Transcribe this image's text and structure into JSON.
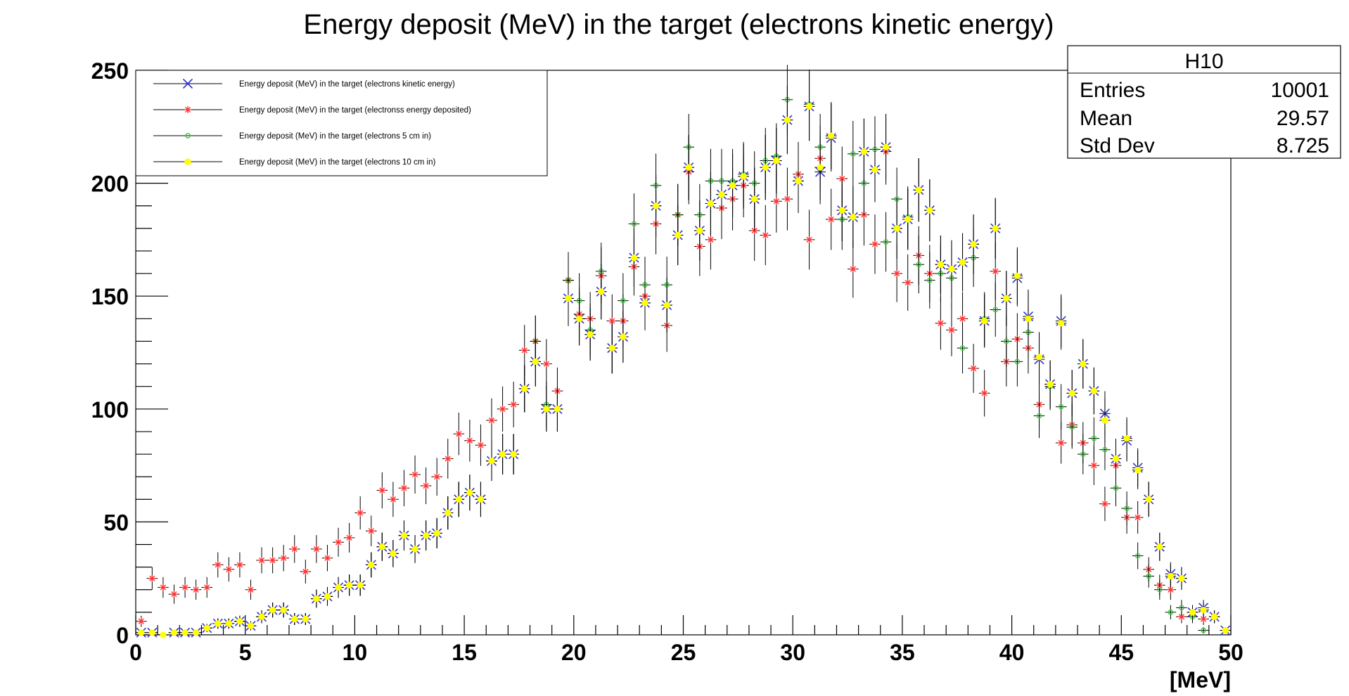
{
  "chart_data": {
    "type": "scatter",
    "title": "Energy deposit (MeV) in the target (electrons kinetic energy)",
    "xlabel": "[MeV]",
    "ylabel": "",
    "xlim": [
      0,
      50
    ],
    "ylim": [
      0,
      250
    ],
    "bin_width": 0.5,
    "x_ticks": [
      0,
      5,
      10,
      15,
      20,
      25,
      30,
      35,
      40,
      45,
      50
    ],
    "y_ticks": [
      0,
      50,
      100,
      150,
      200,
      250
    ],
    "grid": false,
    "legend_position": "top-left",
    "x": [
      0.25,
      0.75,
      1.25,
      1.75,
      2.25,
      2.75,
      3.25,
      3.75,
      4.25,
      4.75,
      5.25,
      5.75,
      6.25,
      6.75,
      7.25,
      7.75,
      8.25,
      8.75,
      9.25,
      9.75,
      10.25,
      10.75,
      11.25,
      11.75,
      12.25,
      12.75,
      13.25,
      13.75,
      14.25,
      14.75,
      15.25,
      15.75,
      16.25,
      16.75,
      17.25,
      17.75,
      18.25,
      18.75,
      19.25,
      19.75,
      20.25,
      20.75,
      21.25,
      21.75,
      22.25,
      22.75,
      23.25,
      23.75,
      24.25,
      24.75,
      25.25,
      25.75,
      26.25,
      26.75,
      27.25,
      27.75,
      28.25,
      28.75,
      29.25,
      29.75,
      30.25,
      30.75,
      31.25,
      31.75,
      32.25,
      32.75,
      33.25,
      33.75,
      34.25,
      34.75,
      35.25,
      35.75,
      36.25,
      36.75,
      37.25,
      37.75,
      38.25,
      38.75,
      39.25,
      39.75,
      40.25,
      40.75,
      41.25,
      41.75,
      42.25,
      42.75,
      43.25,
      43.75,
      44.25,
      44.75,
      45.25,
      45.75,
      46.25,
      46.75,
      47.25,
      47.75,
      48.25,
      48.75,
      49.25,
      49.75
    ],
    "series": [
      {
        "name": "Energy deposit (MeV) in the target (electrons kinetic energy)",
        "color": "#3333cc",
        "marker": "cross-x",
        "values": [
          1,
          1,
          0,
          1,
          1,
          1,
          3,
          5,
          5,
          6,
          4,
          8,
          11,
          11,
          7,
          7,
          16,
          17,
          21,
          22,
          22,
          31,
          39,
          36,
          44,
          38,
          44,
          45,
          54,
          60,
          63,
          60,
          77,
          80,
          80,
          109,
          121,
          100,
          100,
          149,
          140,
          133,
          152,
          127,
          132,
          167,
          147,
          190,
          146,
          177,
          207,
          179,
          191,
          195,
          199,
          203,
          193,
          207,
          210,
          228,
          201,
          234,
          205,
          220,
          188,
          185,
          214,
          206,
          216,
          180,
          184,
          197,
          188,
          164,
          162,
          165,
          173,
          139,
          180,
          149,
          158,
          141,
          122,
          111,
          139,
          107,
          120,
          108,
          98,
          78,
          86,
          74,
          60,
          39,
          27,
          25,
          10,
          12,
          8,
          2
        ]
      },
      {
        "name": "Energy deposit (MeV) in the target (electronss energy deposited)",
        "color": "#ff3333",
        "marker": "star",
        "values": [
          6,
          25,
          21,
          18,
          21,
          20,
          21,
          31,
          29,
          31,
          20,
          33,
          33,
          34,
          38,
          28,
          38,
          34,
          41,
          43,
          54,
          46,
          64,
          60,
          65,
          71,
          66,
          70,
          78,
          89,
          86,
          84,
          95,
          100,
          102,
          126,
          130,
          120,
          108,
          157,
          142,
          140,
          159,
          139,
          139,
          163,
          150,
          182,
          137,
          186,
          205,
          172,
          175,
          189,
          193,
          199,
          179,
          177,
          192,
          193,
          204,
          175,
          211,
          184,
          202,
          162,
          186,
          173,
          214,
          160,
          156,
          168,
          160,
          138,
          135,
          140,
          118,
          107,
          161,
          121,
          131,
          127,
          102,
          111,
          85,
          93,
          85,
          75,
          58,
          75,
          52,
          52,
          29,
          22,
          20,
          8,
          10,
          7,
          0,
          0
        ]
      },
      {
        "name": "Energy deposit (MeV) in the target (electrons 5 cm in)",
        "color": "#33cc33",
        "marker": "open-circle",
        "values": [
          0,
          0,
          0,
          0,
          0,
          0,
          3,
          5,
          5,
          6,
          4,
          8,
          11,
          11,
          7,
          7,
          16,
          17,
          21,
          22,
          22,
          31,
          39,
          36,
          44,
          38,
          44,
          45,
          54,
          60,
          63,
          60,
          77,
          80,
          80,
          109,
          130,
          102,
          100,
          157,
          148,
          135,
          161,
          127,
          148,
          182,
          155,
          199,
          155,
          186,
          216,
          186,
          201,
          201,
          201,
          204,
          200,
          210,
          212,
          237,
          201,
          235,
          216,
          221,
          184,
          213,
          200,
          215,
          174,
          193,
          185,
          164,
          157,
          160,
          158,
          127,
          167,
          140,
          144,
          130,
          121,
          134,
          97,
          110,
          101,
          92,
          80,
          87,
          82,
          65,
          56,
          35,
          26,
          20,
          10,
          12,
          8,
          2,
          0,
          0
        ]
      },
      {
        "name": "Energy deposit (MeV) in the target (electrons 10 cm in)",
        "color": "#ffff00",
        "marker": "filled-circle",
        "values": [
          1,
          1,
          0,
          1,
          1,
          1,
          3,
          5,
          5,
          6,
          4,
          8,
          11,
          11,
          7,
          7,
          16,
          17,
          21,
          22,
          22,
          31,
          39,
          36,
          44,
          38,
          44,
          45,
          54,
          60,
          63,
          60,
          77,
          80,
          80,
          109,
          121,
          100,
          100,
          149,
          140,
          133,
          152,
          127,
          132,
          167,
          147,
          190,
          146,
          177,
          207,
          179,
          191,
          195,
          199,
          203,
          193,
          207,
          210,
          228,
          201,
          234,
          207,
          221,
          188,
          185,
          214,
          206,
          216,
          180,
          184,
          197,
          188,
          164,
          162,
          165,
          173,
          139,
          180,
          149,
          159,
          140,
          123,
          111,
          138,
          107,
          120,
          108,
          95,
          78,
          87,
          73,
          60,
          39,
          26,
          25,
          10,
          11,
          8,
          2
        ]
      }
    ]
  },
  "stats": {
    "title": "H10",
    "rows": [
      {
        "label": "Entries",
        "value": "10001"
      },
      {
        "label": "Mean",
        "value": "29.57"
      },
      {
        "label": "Std Dev",
        "value": "8.725"
      }
    ]
  }
}
